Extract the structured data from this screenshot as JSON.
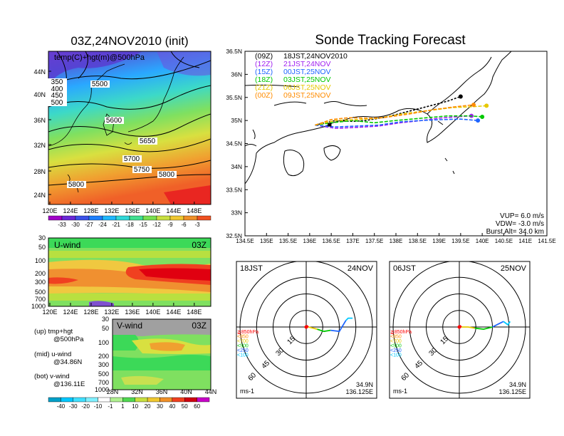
{
  "colors": {
    "u_jet": "#ff0000",
    "track_09z": "#000000",
    "track_12z": "#a020f0",
    "track_15z": "#1e64ff",
    "track_18z": "#00c800",
    "track_21z": "#e6c800",
    "track_00z": "#ff8c00"
  },
  "left": {
    "title": "03Z,24NOV2010 (init)",
    "map_label": "temp(C)+hgt(m)@500hPa",
    "lat_ticks": [
      "44N",
      "40N",
      "36N",
      "32N",
      "28N",
      "24N"
    ],
    "lon_ticks": [
      "120E",
      "124E",
      "128E",
      "132E",
      "136E",
      "140E",
      "144E",
      "148E"
    ],
    "contour_labels": [
      "5500",
      "5600",
      "5650",
      "5700",
      "5750",
      "5800",
      "5800",
      "350",
      "400",
      "450",
      "500"
    ],
    "temp_colorbar": [
      "-33",
      "-30",
      "-27",
      "-24",
      "-21",
      "-18",
      "-15",
      "-12",
      "-9",
      "-6",
      "-3"
    ],
    "u_panel": {
      "label": "U-wind",
      "time": "03Z",
      "y_ticks": [
        "30",
        "50",
        "100",
        "200",
        "300",
        "500",
        "700",
        "1000"
      ],
      "x_ticks": [
        "120E",
        "124E",
        "128E",
        "132E",
        "136E",
        "140E",
        "144E",
        "148E"
      ]
    },
    "v_panel": {
      "label": "V-wind",
      "time": "03Z",
      "y_ticks": [
        "30",
        "50",
        "100",
        "200",
        "300",
        "500",
        "700",
        "1000"
      ],
      "x_ticks": [
        "28N",
        "32N",
        "36N",
        "40N",
        "44N"
      ]
    },
    "notes": [
      {
        "title": "(up) tmp+hgt",
        "sub": "@500hPa"
      },
      {
        "title": "(mid) u-wind",
        "sub": "@34.86N"
      },
      {
        "title": "(bot) v-wind",
        "sub": "@136.11E"
      }
    ],
    "wind_colorbar": [
      "-40",
      "-30",
      "-20",
      "-10",
      "-1",
      "1",
      "10",
      "20",
      "30",
      "40",
      "50",
      "60"
    ]
  },
  "right": {
    "title": "Sonde Tracking Forecast",
    "lat_ticks": [
      "36.5N",
      "36N",
      "35.5N",
      "35N",
      "34.5N",
      "34N",
      "33.5N",
      "33N",
      "32.5N"
    ],
    "lon_ticks": [
      "134.5E",
      "135E",
      "135.5E",
      "136E",
      "136.5E",
      "137E",
      "137.5E",
      "138E",
      "138.5E",
      "139E",
      "139.5E",
      "140E",
      "140.5E",
      "141E",
      "141.5E"
    ],
    "legend": [
      {
        "key": "(09Z)",
        "text": "18JST,24NOV2010",
        "color": "#000000"
      },
      {
        "key": "(12Z)",
        "text": "21JST,24NOV",
        "color": "#a020f0"
      },
      {
        "key": "(15Z)",
        "text": "00JST,25NOV",
        "color": "#1e64ff"
      },
      {
        "key": "(18Z)",
        "text": "03JST,25NOV",
        "color": "#00c800"
      },
      {
        "key": "(21Z)",
        "text": "06JST,25NOV",
        "color": "#e6c800"
      },
      {
        "key": "(00Z)",
        "text": "09JST,25NOV",
        "color": "#ff8c00"
      }
    ],
    "params": [
      "VUP= 6.0 m/s",
      "VDW= -3.0 m/s",
      "Burst Alt= 34.0 km"
    ],
    "hodo_left": {
      "time": "18JST",
      "date": "24NOV",
      "unit": "ms-1",
      "lat": "34.9N",
      "lon": "136.125E"
    },
    "hodo_right": {
      "time": "06JST",
      "date": "25NOV",
      "unit": "ms-1",
      "lat": "34.9N",
      "lon": "136.125E"
    },
    "ring_labels": [
      "15",
      "30",
      "45",
      "60"
    ],
    "hodo_legend": [
      {
        "text": "≧850hPa",
        "color": "#ff0000"
      },
      {
        "text": "<850",
        "color": "#ff8c00"
      },
      {
        "text": "<700",
        "color": "#e6c800"
      },
      {
        "text": "<500",
        "color": "#00c800"
      },
      {
        "text": "<250",
        "color": "#1e64ff"
      },
      {
        "text": "<100",
        "color": "#00c8ff"
      }
    ]
  },
  "chart_data": [
    {
      "type": "heatmap",
      "title": "03Z,24NOV2010 (init)",
      "subtitle": "temp(C)+hgt(m)@500hPa",
      "x_range": [
        120,
        150
      ],
      "y_range": [
        22,
        48
      ],
      "colorbar": [
        -33,
        -30,
        -27,
        -24,
        -21,
        -18,
        -15,
        -12,
        -9,
        -6,
        -3
      ],
      "height_contours": [
        5500,
        5600,
        5650,
        5700,
        5750,
        5800
      ]
    },
    {
      "type": "heatmap",
      "title": "U-wind",
      "annotation": "03Z",
      "x_range": [
        120,
        150
      ],
      "pressure_levels": [
        1000,
        700,
        500,
        300,
        200,
        100,
        50,
        30
      ],
      "colorbar": [
        -40,
        -30,
        -20,
        -10,
        -1,
        1,
        10,
        20,
        30,
        40,
        50,
        60
      ],
      "jet_core": {
        "lon_range": [
          135,
          150
        ],
        "pressure_range": [
          150,
          250
        ]
      }
    },
    {
      "type": "heatmap",
      "title": "V-wind",
      "annotation": "03Z",
      "x_range": [
        28,
        44
      ],
      "pressure_levels": [
        1000,
        700,
        500,
        300,
        200,
        100,
        50,
        30
      ]
    },
    {
      "type": "line",
      "title": "Sonde Tracking Forecast",
      "x_range": [
        134.5,
        141.5
      ],
      "y_range": [
        32.5,
        36.5
      ],
      "launch": {
        "lon": 136.125,
        "lat": 34.9
      },
      "series": [
        {
          "name": "(09Z) 18JST,24NOV2010",
          "x": [
            136.125,
            136.6,
            137.0,
            137.3,
            137.8,
            138.3,
            138.8,
            139.2,
            139.5
          ],
          "y": [
            34.9,
            35.0,
            34.98,
            35.0,
            35.08,
            35.2,
            35.32,
            35.42,
            35.52
          ]
        },
        {
          "name": "(12Z) 21JST,24NOV",
          "x": [
            136.125,
            136.6,
            137.1,
            137.6,
            138.1,
            138.6,
            139.0,
            139.4,
            139.75
          ],
          "y": [
            34.9,
            34.83,
            34.85,
            34.88,
            34.95,
            35.0,
            35.05,
            35.08,
            35.1
          ]
        },
        {
          "name": "(15Z) 00JST,25NOV",
          "x": [
            136.125,
            136.6,
            137.1,
            137.6,
            138.1,
            138.6,
            139.1,
            139.5,
            139.9
          ],
          "y": [
            34.9,
            34.86,
            34.88,
            34.9,
            34.97,
            35.0,
            35.02,
            35.03,
            35.0
          ]
        },
        {
          "name": "(18Z) 03JST,25NOV",
          "x": [
            136.125,
            136.5,
            137.0,
            137.5,
            138.0,
            138.6,
            139.2,
            139.7,
            140.0
          ],
          "y": [
            34.9,
            34.95,
            35.0,
            34.95,
            35.0,
            35.05,
            35.1,
            35.1,
            35.08
          ]
        },
        {
          "name": "(21Z) 06JST,25NOV",
          "x": [
            136.125,
            136.6,
            137.1,
            137.6,
            138.2,
            138.8,
            139.3,
            139.8,
            140.1
          ],
          "y": [
            34.9,
            35.0,
            35.02,
            35.05,
            35.15,
            35.22,
            35.28,
            35.3,
            35.32
          ]
        },
        {
          "name": "(00Z) 09JST,25NOV",
          "x": [
            136.125,
            136.5,
            136.9,
            137.4,
            137.7,
            138.3,
            138.9,
            139.4,
            139.8
          ],
          "y": [
            34.9,
            35.02,
            35.06,
            35.05,
            35.06,
            35.14,
            35.24,
            35.3,
            35.34
          ]
        }
      ],
      "params": {
        "VUP_m_s": 6.0,
        "VDW_m_s": -3.0,
        "burst_alt_km": 34.0
      }
    },
    {
      "type": "line",
      "title": "18JST 24NOV hodograph",
      "rings_ms": [
        15,
        30,
        45,
        60
      ],
      "series": [
        {
          "name": "≧850hPa",
          "u": [
            0,
            1,
            2
          ],
          "v": [
            0,
            1,
            0
          ]
        },
        {
          "name": "<700",
          "u": [
            2,
            6,
            10
          ],
          "v": [
            0,
            -1,
            -2
          ]
        },
        {
          "name": "<500",
          "u": [
            10,
            16,
            22
          ],
          "v": [
            -2,
            -4,
            -3
          ]
        },
        {
          "name": "<250",
          "u": [
            22,
            30,
            36
          ],
          "v": [
            -3,
            -4,
            6
          ]
        },
        {
          "name": "<100",
          "u": [
            36,
            38,
            42
          ],
          "v": [
            6,
            8,
            8
          ]
        }
      ]
    },
    {
      "type": "line",
      "title": "06JST 25NOV hodograph",
      "rings_ms": [
        15,
        30,
        45,
        60
      ],
      "series": [
        {
          "name": "≧850hPa",
          "u": [
            0,
            1,
            2
          ],
          "v": [
            0,
            1,
            0
          ]
        },
        {
          "name": "<700",
          "u": [
            2,
            8,
            14
          ],
          "v": [
            0,
            0,
            -1
          ]
        },
        {
          "name": "<500",
          "u": [
            14,
            22,
            30
          ],
          "v": [
            -1,
            -2,
            0
          ]
        },
        {
          "name": "<250",
          "u": [
            30,
            36,
            40
          ],
          "v": [
            0,
            3,
            5
          ]
        },
        {
          "name": "<100",
          "u": [
            40,
            44,
            46
          ],
          "v": [
            5,
            2,
            5
          ]
        }
      ]
    }
  ]
}
